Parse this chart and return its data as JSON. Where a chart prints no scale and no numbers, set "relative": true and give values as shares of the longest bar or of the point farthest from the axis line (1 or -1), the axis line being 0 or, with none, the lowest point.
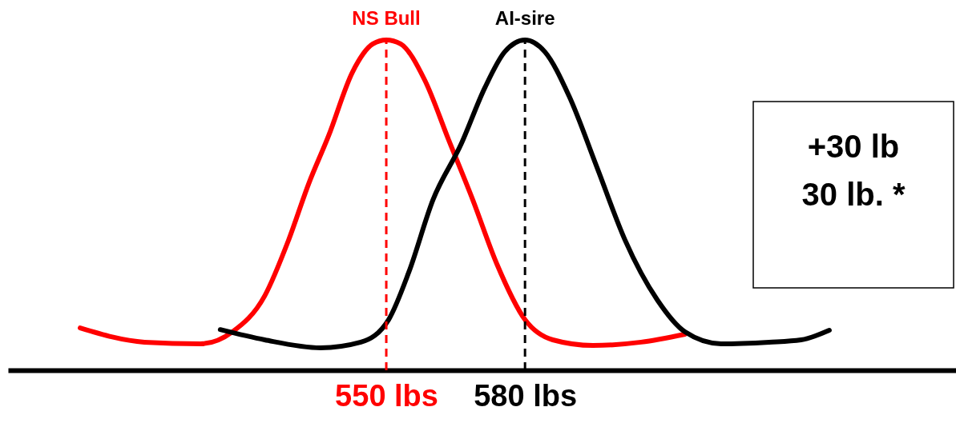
{
  "chart_data": {
    "type": "line",
    "relative": true,
    "grid": false,
    "marker": "none",
    "line_style": "solid",
    "xlim": [
      468.2,
      673.2
    ],
    "xticks": [
      {
        "value": 550,
        "label": "550 lbs"
      },
      {
        "value": 580,
        "label": "580 lbs"
      }
    ],
    "series": [
      {
        "color": "#ff0000",
        "x": [
          483.8,
          497.7,
          509.8,
          516.7,
          523.7,
          528.9,
          533.2,
          537.5,
          542.7,
          547.1,
          550,
          553.1,
          558.3,
          563.5,
          568.7,
          573.9,
          580,
          586.0,
          594.7,
          605.1,
          614.6
        ],
        "values": [
          0.128,
          0.085,
          0.08,
          0.116,
          0.225,
          0.395,
          0.564,
          0.709,
          0.903,
          0.988,
          1,
          0.988,
          0.879,
          0.697,
          0.516,
          0.322,
          0.153,
          0.092,
          0.075,
          0.085,
          0.109
        ]
      },
      {
        "color": "#000000",
        "x": [
          514.1,
          523.7,
          535.8,
          544.5,
          550.5,
          554.9,
          560.1,
          566.2,
          571.3,
          575.6,
          580,
          584.3,
          589.5,
          595.6,
          601.6,
          608.6,
          614.6,
          622.4,
          632.8,
          639.7,
          645.8
        ],
        "values": [
          0.123,
          0.092,
          0.068,
          0.085,
          0.153,
          0.298,
          0.516,
          0.685,
          0.855,
          0.964,
          1,
          0.964,
          0.831,
          0.613,
          0.395,
          0.213,
          0.116,
          0.08,
          0.085,
          0.092,
          0.121
        ]
      }
    ],
    "ref_lines": [
      {
        "axis": "x",
        "value": 550,
        "label": "NS Bull",
        "color": "#ff0000",
        "line_style": "dashed"
      },
      {
        "axis": "x",
        "value": 580,
        "label": "AI-sire",
        "color": "#000000",
        "line_style": "dashed"
      }
    ],
    "annotations": [
      "+30 lb",
      "30 lb. *"
    ]
  }
}
